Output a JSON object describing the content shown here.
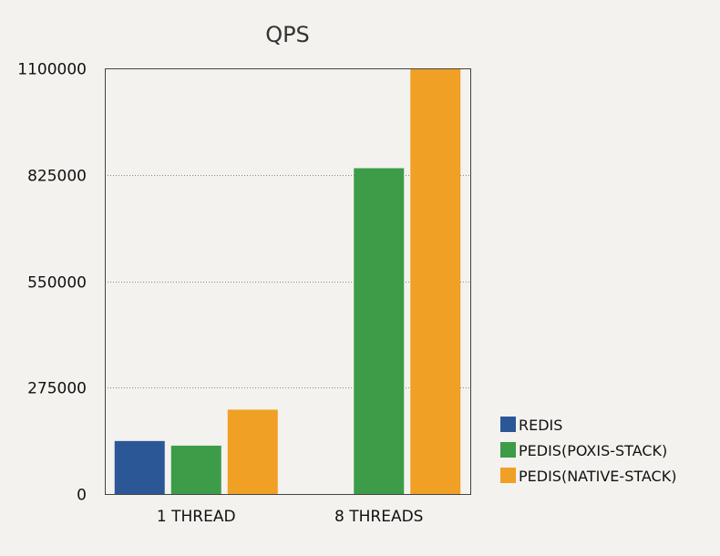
{
  "chart_data": {
    "type": "bar",
    "title": "QPS",
    "xlabel": "",
    "ylabel": "",
    "categories": [
      "1 THREAD",
      "8 THREADS"
    ],
    "series": [
      {
        "name": "REDIS",
        "color": "#2b5797",
        "values": [
          137000,
          null
        ]
      },
      {
        "name": "PEDIS(POXIS-STACK)",
        "color": "#3d9c48",
        "values": [
          125000,
          842000
        ]
      },
      {
        "name": "PEDIS(NATIVE-STACK)",
        "color": "#f0a024",
        "values": [
          218000,
          1100000
        ]
      }
    ],
    "ylim": [
      0,
      1100000
    ],
    "yticks": [
      0,
      275000,
      550000,
      825000,
      1100000
    ],
    "yticklabels": [
      "0",
      "275000",
      "550000",
      "825000",
      "1100000"
    ],
    "grid": true,
    "legend_position": "right"
  }
}
